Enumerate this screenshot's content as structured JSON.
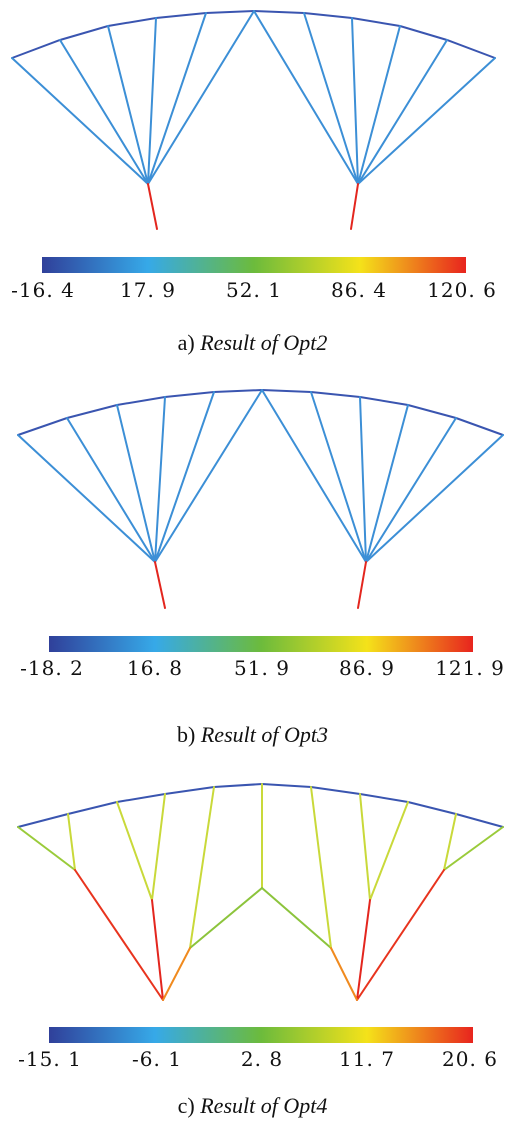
{
  "colormap": [
    "#30409a",
    "#36a9e8",
    "#6cbb3c",
    "#f4e21a",
    "#e8241e"
  ],
  "panels": [
    {
      "caption_label": "a)",
      "caption_title": "Result of Opt2",
      "ticks": [
        "-16. 4",
        "17. 9",
        "52. 1",
        "86. 4",
        "120. 6"
      ]
    },
    {
      "caption_label": "b)",
      "caption_title": "Result of Opt3",
      "ticks": [
        "-18. 2",
        "16. 8",
        "51. 9",
        "86. 9",
        "121. 9"
      ]
    },
    {
      "caption_label": "c)",
      "caption_title": "Result of Opt4",
      "ticks": [
        "-15. 1",
        "-6. 1",
        "2. 8",
        "11. 7",
        "20. 6"
      ]
    }
  ]
}
